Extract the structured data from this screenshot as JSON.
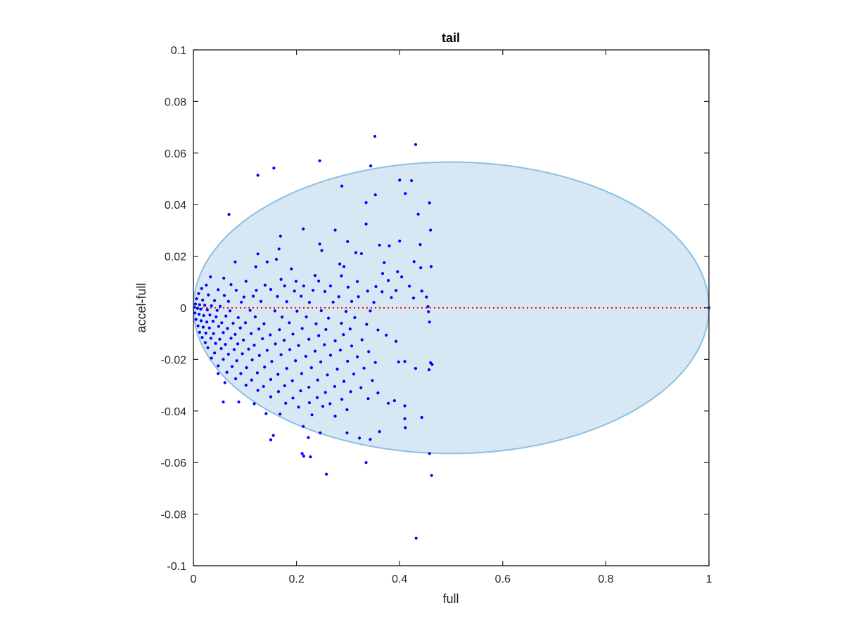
{
  "chart_data": {
    "type": "scatter",
    "title": "tail",
    "xlabel": "full",
    "ylabel": "accel-full",
    "xlim": [
      0,
      1
    ],
    "ylim": [
      -0.1,
      0.1
    ],
    "x_ticks": [
      0,
      0.2,
      0.4,
      0.6,
      0.8,
      1
    ],
    "x_tick_labels": [
      "0",
      "0.2",
      "0.4",
      "0.6",
      "0.8",
      "1"
    ],
    "y_ticks": [
      -0.1,
      -0.08,
      -0.06,
      -0.04,
      -0.02,
      0,
      0.02,
      0.04,
      0.06,
      0.08,
      0.1
    ],
    "y_tick_labels": [
      "-0.1",
      "-0.08",
      "-0.06",
      "-0.04",
      "-0.02",
      "0",
      "0.02",
      "0.04",
      "0.06",
      "0.08",
      "0.1"
    ],
    "grid": false,
    "colors": {
      "points": "#0000ff",
      "ellipse_fill": "#d7e7f4",
      "ellipse_edge": "#8ebfe0",
      "zero_line": "#ff0000",
      "axes": "#262626"
    },
    "ellipse": {
      "center_x": 0.5,
      "center_y": 0,
      "semi_axis_x": 0.5,
      "semi_axis_y": 0.0565
    },
    "reference_line": {
      "y": 0,
      "x_range": [
        0,
        1
      ],
      "style": "dotted"
    },
    "series": [
      {
        "points": [
          [
            0.352,
            0.0665
          ],
          [
            0.431,
            0.0633
          ],
          [
            0.245,
            0.057
          ],
          [
            0.344,
            0.055
          ],
          [
            0.156,
            0.0542
          ],
          [
            0.125,
            0.0514
          ],
          [
            0.4,
            0.0495
          ],
          [
            0.423,
            0.0493
          ],
          [
            0.288,
            0.0472
          ],
          [
            0.411,
            0.0443
          ],
          [
            0.353,
            0.0438
          ],
          [
            0.458,
            0.0407
          ],
          [
            0.335,
            0.0408
          ],
          [
            0.069,
            0.0362
          ],
          [
            0.436,
            0.0363
          ],
          [
            0.46,
            0.0301
          ],
          [
            0.335,
            0.0325
          ],
          [
            0.213,
            0.0306
          ],
          [
            0.169,
            0.0278
          ],
          [
            0.275,
            0.0301
          ],
          [
            0.4,
            0.0259
          ],
          [
            0.245,
            0.0247
          ],
          [
            0.299,
            0.0257
          ],
          [
            0.361,
            0.0243
          ],
          [
            0.38,
            0.024
          ],
          [
            0.44,
            0.0245
          ],
          [
            0.166,
            0.0228
          ],
          [
            0.249,
            0.0222
          ],
          [
            0.315,
            0.0214
          ],
          [
            0.326,
            0.021
          ],
          [
            0.125,
            0.0209
          ],
          [
            0.161,
            0.0188
          ],
          [
            0.081,
            0.0178
          ],
          [
            0.143,
            0.0178
          ],
          [
            0.284,
            0.017
          ],
          [
            0.37,
            0.0175
          ],
          [
            0.428,
            0.0179
          ],
          [
            0.292,
            0.016
          ],
          [
            0.461,
            0.016
          ],
          [
            0.121,
            0.0159
          ],
          [
            0.19,
            0.0151
          ],
          [
            0.441,
            0.0155
          ],
          [
            0.396,
            0.014
          ],
          [
            0.236,
            0.0125
          ],
          [
            0.287,
            0.0124
          ],
          [
            0.367,
            0.0133
          ],
          [
            0.404,
            0.012
          ],
          [
            0.033,
            0.012
          ],
          [
            0.059,
            0.0115
          ],
          [
            0.102,
            0.0103
          ],
          [
            0.17,
            0.011
          ],
          [
            0.199,
            0.0103
          ],
          [
            0.243,
            0.0104
          ],
          [
            0.318,
            0.0102
          ],
          [
            0.378,
            0.0106
          ],
          [
            0.025,
            0.0088
          ],
          [
            0.073,
            0.009
          ],
          [
            0.139,
            0.0088
          ],
          [
            0.177,
            0.0085
          ],
          [
            0.214,
            0.0085
          ],
          [
            0.266,
            0.0085
          ],
          [
            0.3,
            0.008
          ],
          [
            0.354,
            0.0082
          ],
          [
            0.419,
            0.0084
          ],
          [
            0.016,
            0.0075
          ],
          [
            0.048,
            0.007
          ],
          [
            0.083,
            0.0068
          ],
          [
            0.122,
            0.0068
          ],
          [
            0.15,
            0.0071
          ],
          [
            0.196,
            0.0065
          ],
          [
            0.232,
            0.0068
          ],
          [
            0.255,
            0.0063
          ],
          [
            0.338,
            0.0065
          ],
          [
            0.366,
            0.0062
          ],
          [
            0.393,
            0.0067
          ],
          [
            0.443,
            0.0065
          ],
          [
            0.01,
            0.0055
          ],
          [
            0.029,
            0.005
          ],
          [
            0.06,
            0.0048
          ],
          [
            0.098,
            0.0042
          ],
          [
            0.116,
            0.0045
          ],
          [
            0.163,
            0.0044
          ],
          [
            0.209,
            0.0045
          ],
          [
            0.282,
            0.0043
          ],
          [
            0.32,
            0.0043
          ],
          [
            0.384,
            0.004
          ],
          [
            0.427,
            0.0038
          ],
          [
            0.452,
            0.0042
          ],
          [
            0.006,
            0.0035
          ],
          [
            0.018,
            0.003
          ],
          [
            0.041,
            0.0028
          ],
          [
            0.068,
            0.0025
          ],
          [
            0.093,
            0.0022
          ],
          [
            0.131,
            0.0025
          ],
          [
            0.181,
            0.0024
          ],
          [
            0.225,
            0.0021
          ],
          [
            0.271,
            0.0022
          ],
          [
            0.307,
            0.0025
          ],
          [
            0.35,
            0.0021
          ],
          [
            0.004,
            0.0015
          ],
          [
            0.012,
            0.0012
          ],
          [
            0.022,
            0.001
          ],
          [
            0.035,
            0.0008
          ],
          [
            0.052,
            0.0006
          ],
          [
            0.455,
            0.0005
          ],
          [
            0.002,
            0.0002
          ],
          [
            0.008,
            -0.0002
          ],
          [
            0.014,
            -0.0005
          ],
          [
            0.027,
            -0.0008
          ],
          [
            0.046,
            -0.001
          ],
          [
            0.071,
            -0.0012
          ],
          [
            0.11,
            -0.001
          ],
          [
            0.158,
            -0.0012
          ],
          [
            0.201,
            -0.0013
          ],
          [
            0.248,
            -0.0011
          ],
          [
            0.296,
            -0.0014
          ],
          [
            0.343,
            -0.0012
          ],
          [
            0.456,
            -0.0015
          ],
          [
            0.003,
            -0.002
          ],
          [
            0.011,
            -0.0025
          ],
          [
            0.02,
            -0.003
          ],
          [
            0.032,
            -0.0028
          ],
          [
            0.044,
            -0.0035
          ],
          [
            0.063,
            -0.0032
          ],
          [
            0.087,
            -0.0038
          ],
          [
            0.12,
            -0.0035
          ],
          [
            0.172,
            -0.0036
          ],
          [
            0.219,
            -0.0035
          ],
          [
            0.262,
            -0.004
          ],
          [
            0.313,
            -0.0038
          ],
          [
            0.005,
            -0.0045
          ],
          [
            0.015,
            -0.005
          ],
          [
            0.026,
            -0.0055
          ],
          [
            0.038,
            -0.0052
          ],
          [
            0.055,
            -0.0058
          ],
          [
            0.077,
            -0.006
          ],
          [
            0.101,
            -0.0058
          ],
          [
            0.137,
            -0.0062
          ],
          [
            0.186,
            -0.0058
          ],
          [
            0.238,
            -0.0062
          ],
          [
            0.287,
            -0.006
          ],
          [
            0.336,
            -0.0064
          ],
          [
            0.458,
            -0.0055
          ],
          [
            0.009,
            -0.007
          ],
          [
            0.019,
            -0.0075
          ],
          [
            0.031,
            -0.0078
          ],
          [
            0.049,
            -0.0072
          ],
          [
            0.066,
            -0.008
          ],
          [
            0.091,
            -0.0078
          ],
          [
            0.127,
            -0.0082
          ],
          [
            0.167,
            -0.0085
          ],
          [
            0.211,
            -0.008
          ],
          [
            0.257,
            -0.0084
          ],
          [
            0.304,
            -0.0082
          ],
          [
            0.358,
            -0.0086
          ],
          [
            0.012,
            -0.0095
          ],
          [
            0.024,
            -0.0098
          ],
          [
            0.039,
            -0.01
          ],
          [
            0.058,
            -0.0096
          ],
          [
            0.081,
            -0.0103
          ],
          [
            0.112,
            -0.01
          ],
          [
            0.149,
            -0.0105
          ],
          [
            0.193,
            -0.0102
          ],
          [
            0.243,
            -0.0108
          ],
          [
            0.291,
            -0.0104
          ],
          [
            0.374,
            -0.0106
          ],
          [
            0.017,
            -0.0115
          ],
          [
            0.034,
            -0.0118
          ],
          [
            0.051,
            -0.0122
          ],
          [
            0.073,
            -0.0118
          ],
          [
            0.097,
            -0.0125
          ],
          [
            0.134,
            -0.012
          ],
          [
            0.176,
            -0.0126
          ],
          [
            0.224,
            -0.0122
          ],
          [
            0.275,
            -0.0128
          ],
          [
            0.327,
            -0.0124
          ],
          [
            0.393,
            -0.013
          ],
          [
            0.023,
            -0.0135
          ],
          [
            0.043,
            -0.0138
          ],
          [
            0.062,
            -0.0142
          ],
          [
            0.086,
            -0.014
          ],
          [
            0.118,
            -0.0145
          ],
          [
            0.159,
            -0.014
          ],
          [
            0.204,
            -0.0146
          ],
          [
            0.254,
            -0.0143
          ],
          [
            0.307,
            -0.0148
          ],
          [
            0.028,
            -0.0155
          ],
          [
            0.054,
            -0.0158
          ],
          [
            0.079,
            -0.0162
          ],
          [
            0.107,
            -0.016
          ],
          [
            0.143,
            -0.0165
          ],
          [
            0.187,
            -0.0162
          ],
          [
            0.236,
            -0.0168
          ],
          [
            0.285,
            -0.0164
          ],
          [
            0.34,
            -0.017
          ],
          [
            0.041,
            -0.0175
          ],
          [
            0.068,
            -0.018
          ],
          [
            0.095,
            -0.0178
          ],
          [
            0.128,
            -0.0185
          ],
          [
            0.17,
            -0.0182
          ],
          [
            0.218,
            -0.0188
          ],
          [
            0.266,
            -0.0184
          ],
          [
            0.318,
            -0.019
          ],
          [
            0.035,
            -0.0195
          ],
          [
            0.058,
            -0.02
          ],
          [
            0.084,
            -0.0205
          ],
          [
            0.114,
            -0.0202
          ],
          [
            0.152,
            -0.0208
          ],
          [
            0.198,
            -0.0205
          ],
          [
            0.247,
            -0.021
          ],
          [
            0.299,
            -0.0207
          ],
          [
            0.353,
            -0.0212
          ],
          [
            0.398,
            -0.021
          ],
          [
            0.41,
            -0.0208
          ],
          [
            0.46,
            -0.0213
          ],
          [
            0.463,
            -0.022
          ],
          [
            0.048,
            -0.0225
          ],
          [
            0.075,
            -0.0228
          ],
          [
            0.103,
            -0.0232
          ],
          [
            0.138,
            -0.023
          ],
          [
            0.181,
            -0.0235
          ],
          [
            0.229,
            -0.0232
          ],
          [
            0.279,
            -0.0238
          ],
          [
            0.331,
            -0.0234
          ],
          [
            0.065,
            -0.025
          ],
          [
            0.092,
            -0.0255
          ],
          [
            0.124,
            -0.0252
          ],
          [
            0.164,
            -0.0258
          ],
          [
            0.21,
            -0.0255
          ],
          [
            0.26,
            -0.026
          ],
          [
            0.311,
            -0.0257
          ],
          [
            0.048,
            -0.0255
          ],
          [
            0.431,
            -0.0235
          ],
          [
            0.457,
            -0.024
          ],
          [
            0.082,
            -0.0275
          ],
          [
            0.113,
            -0.028
          ],
          [
            0.15,
            -0.0278
          ],
          [
            0.192,
            -0.0283
          ],
          [
            0.241,
            -0.028
          ],
          [
            0.292,
            -0.0285
          ],
          [
            0.347,
            -0.0282
          ],
          [
            0.061,
            -0.029
          ],
          [
            0.102,
            -0.03
          ],
          [
            0.136,
            -0.0305
          ],
          [
            0.177,
            -0.0302
          ],
          [
            0.224,
            -0.0308
          ],
          [
            0.274,
            -0.0305
          ],
          [
            0.325,
            -0.031
          ],
          [
            0.125,
            -0.032
          ],
          [
            0.165,
            -0.0325
          ],
          [
            0.208,
            -0.0322
          ],
          [
            0.256,
            -0.0328
          ],
          [
            0.305,
            -0.0325
          ],
          [
            0.358,
            -0.033
          ],
          [
            0.15,
            -0.0345
          ],
          [
            0.193,
            -0.035
          ],
          [
            0.24,
            -0.0348
          ],
          [
            0.288,
            -0.0355
          ],
          [
            0.339,
            -0.0352
          ],
          [
            0.058,
            -0.0365
          ],
          [
            0.088,
            -0.0365
          ],
          [
            0.179,
            -0.037
          ],
          [
            0.225,
            -0.0368
          ],
          [
            0.265,
            -0.0372
          ],
          [
            0.378,
            -0.037
          ],
          [
            0.41,
            -0.038
          ],
          [
            0.39,
            -0.036
          ],
          [
            0.118,
            -0.0372
          ],
          [
            0.204,
            -0.0385
          ],
          [
            0.251,
            -0.0382
          ],
          [
            0.298,
            -0.0395
          ],
          [
            0.141,
            -0.041
          ],
          [
            0.168,
            -0.0412
          ],
          [
            0.23,
            -0.0415
          ],
          [
            0.275,
            -0.042
          ],
          [
            0.443,
            -0.0425
          ],
          [
            0.41,
            -0.043
          ],
          [
            0.361,
            -0.048
          ],
          [
            0.411,
            -0.0465
          ],
          [
            0.298,
            -0.0485
          ],
          [
            0.322,
            -0.0505
          ],
          [
            0.343,
            -0.051
          ],
          [
            0.213,
            -0.046
          ],
          [
            0.155,
            -0.0495
          ],
          [
            0.15,
            -0.0512
          ],
          [
            0.223,
            -0.0503
          ],
          [
            0.246,
            -0.0485
          ],
          [
            0.211,
            -0.0565
          ],
          [
            0.214,
            -0.0575
          ],
          [
            0.227,
            -0.0578
          ],
          [
            0.458,
            -0.0565
          ],
          [
            0.335,
            -0.06
          ],
          [
            0.258,
            -0.0645
          ],
          [
            0.462,
            -0.065
          ],
          [
            0.432,
            -0.0893
          ],
          [
            1.0,
            0.0
          ]
        ]
      }
    ]
  }
}
